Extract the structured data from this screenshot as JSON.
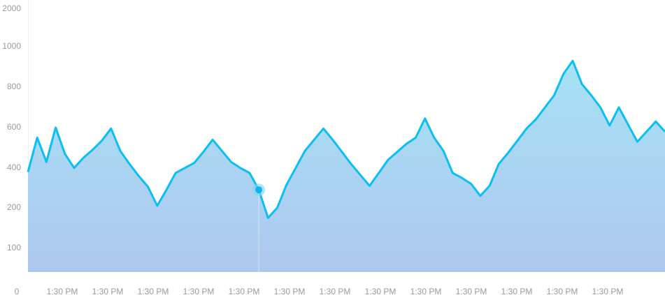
{
  "chart_data": {
    "type": "area",
    "title": "",
    "xlabel": "",
    "ylabel": "",
    "y_tick_labels": [
      "2000",
      "1000",
      "800",
      "600",
      "400",
      "200",
      "100",
      "0"
    ],
    "x_origin_label": "0",
    "x_tick_labels": [
      "1:30 PM",
      "1:30 PM",
      "1:30 PM",
      "1:30 PM",
      "1:30 PM",
      "1:30 PM",
      "1:30 PM",
      "1:30 PM",
      "1:30 PM",
      "1:30 PM",
      "1:30 PM",
      "1:30 PM",
      "1:30 PM"
    ],
    "ylim": [
      0,
      2000
    ],
    "grid": false,
    "legend": "none",
    "colors": {
      "line": "#0bbff2",
      "fill_top": "#a6e2f6",
      "fill_bottom": "#aec7ee",
      "marker": "#0bb6ee",
      "marker_halo": "#7fd3f2",
      "tick_text": "#9a9a9a"
    },
    "highlighted_point_index": 25,
    "series": [
      {
        "values": [
          370,
          540,
          420,
          590,
          460,
          390,
          440,
          480,
          525,
          585,
          475,
          410,
          350,
          295,
          200,
          280,
          365,
          390,
          415,
          470,
          530,
          475,
          420,
          390,
          365,
          280,
          170,
          195,
          305,
          390,
          475,
          530,
          585,
          530,
          470,
          410,
          355,
          300,
          365,
          430,
          470,
          510,
          540,
          635,
          540,
          475,
          365,
          340,
          310,
          250,
          300,
          410,
          465,
          525,
          585,
          630,
          690,
          750,
          855,
          920,
          805,
          750,
          690,
          600,
          690,
          605,
          520,
          570,
          620,
          570
        ]
      }
    ]
  }
}
